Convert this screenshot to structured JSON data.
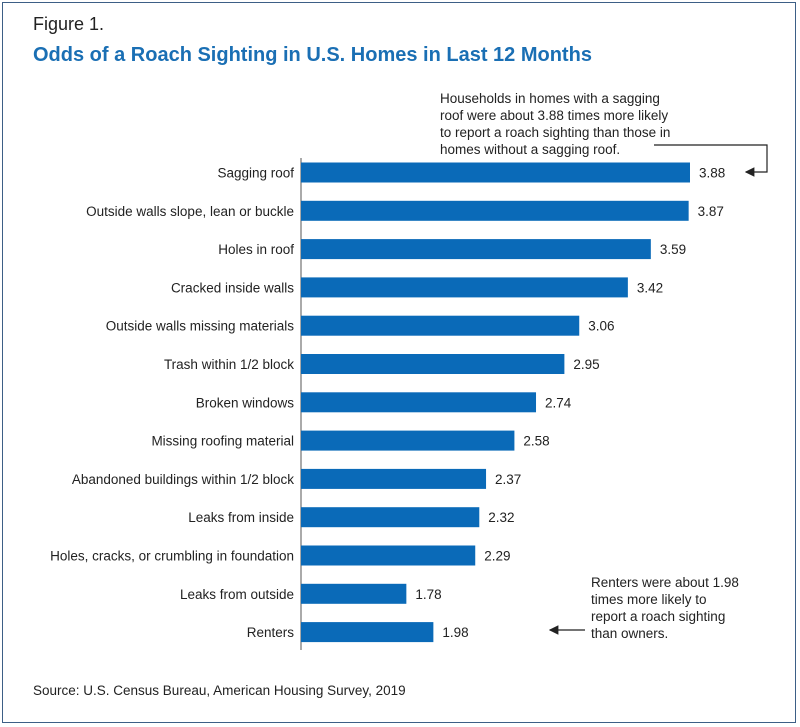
{
  "figure_label": "Figure 1.",
  "title": "Odds of a Roach Sighting in U.S. Homes in Last 12 Months",
  "source": "Source: U.S. Census Bureau, American Housing Survey, 2019",
  "annotations": {
    "top": [
      "Households in homes with a sagging",
      "roof were about 3.88 times more likely",
      "to report a roach sighting than those in",
      "homes without a sagging roof."
    ],
    "bottom": [
      "Renters were about 1.98",
      "times more likely to",
      "report a roach sighting",
      "than owners."
    ]
  },
  "colors": {
    "bar": "#0a6ab8",
    "title": "#1a6fb4",
    "border": "#3d5f86"
  },
  "chart_data": {
    "type": "bar",
    "orientation": "horizontal",
    "title": "Odds of a Roach Sighting in U.S. Homes in Last 12 Months",
    "categories": [
      "Sagging roof",
      "Outside walls slope, lean or buckle",
      "Holes in roof",
      "Cracked inside walls",
      "Outside walls missing materials",
      "Trash within 1/2 block",
      "Broken windows",
      "Missing roofing material",
      "Abandoned buildings within 1/2 block",
      "Leaks from inside",
      "Holes, cracks, or crumbling in foundation",
      "Leaks from outside",
      "Renters"
    ],
    "values": [
      3.88,
      3.87,
      3.59,
      3.42,
      3.06,
      2.95,
      2.74,
      2.58,
      2.37,
      2.32,
      2.29,
      1.78,
      1.98
    ],
    "value_labels": [
      "3.88",
      "3.87",
      "3.59",
      "3.42",
      "3.06",
      "2.95",
      "2.74",
      "2.58",
      "2.37",
      "2.32",
      "2.29",
      "1.78",
      "1.98"
    ],
    "xlim": [
      1,
      3.88
    ],
    "xlabel": "",
    "ylabel": "",
    "grid": false,
    "legend": "none"
  }
}
